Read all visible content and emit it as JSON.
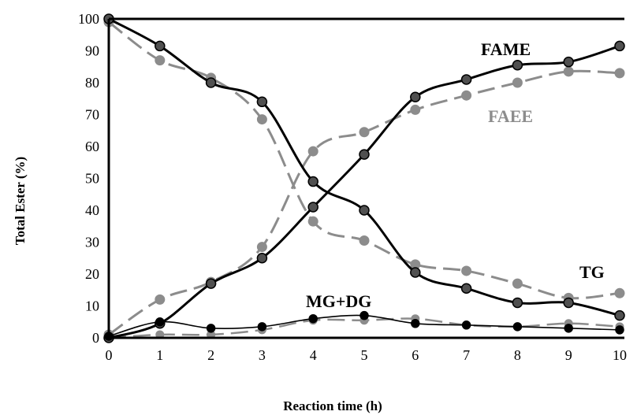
{
  "chart_data": {
    "type": "line",
    "xlabel": "Reaction time (h)",
    "ylabel": "Total Ester (%)",
    "xlim": [
      0,
      10
    ],
    "ylim": [
      0,
      100
    ],
    "xticks": [
      "0",
      "1",
      "2",
      "3",
      "4",
      "5",
      "6",
      "7",
      "8",
      "9",
      "10"
    ],
    "yticks": [
      "0",
      "10",
      "20",
      "30",
      "40",
      "50",
      "60",
      "70",
      "80",
      "90",
      "100"
    ],
    "grid": false,
    "x": [
      0,
      1,
      2,
      3,
      4,
      5,
      6,
      7,
      8,
      9,
      10
    ],
    "series": [
      {
        "name": "FAME",
        "color": "#000000",
        "dashed": false,
        "marker_fill": "#505050",
        "values": [
          0,
          4.5,
          17,
          25,
          41,
          57.5,
          75.5,
          81,
          85.5,
          86.5,
          91.5
        ]
      },
      {
        "name": "FAEE",
        "color": "#8c8c8c",
        "dashed": true,
        "marker_fill": "#8c8c8c",
        "values": [
          1,
          12,
          17.5,
          28.5,
          58.5,
          64.5,
          71.5,
          76,
          80,
          83.5,
          83
        ]
      },
      {
        "name": "TG",
        "color": "#000000",
        "dashed": false,
        "marker_fill": "#505050",
        "values": [
          100,
          91.5,
          80,
          74,
          49,
          40,
          20.5,
          15.5,
          11,
          11,
          7
        ]
      },
      {
        "name": "TG",
        "color": "#8c8c8c",
        "dashed": true,
        "marker_fill": "#8c8c8c",
        "values": [
          99,
          87,
          81.5,
          68.5,
          36.5,
          30.5,
          23,
          21,
          17,
          12.5,
          14
        ]
      },
      {
        "name": "MG+DG",
        "color": "#000000",
        "dashed": false,
        "thin": true,
        "marker_fill": "#000000",
        "values": [
          0.5,
          5,
          3,
          3.5,
          6,
          7,
          4.5,
          4,
          3.5,
          3,
          2.5
        ]
      },
      {
        "name": "MG+DG",
        "color": "#8c8c8c",
        "dashed": true,
        "thin": true,
        "marker_fill": "#8c8c8c",
        "values": [
          0,
          1,
          1,
          2.5,
          5.5,
          5.5,
          6,
          4,
          3.5,
          4.5,
          3.5
        ]
      }
    ],
    "annotations": [
      {
        "text": "FAME",
        "color": "#000000"
      },
      {
        "text": "FAEE",
        "color": "#8c8c8c"
      },
      {
        "text": "TG",
        "color": "#000000"
      },
      {
        "text": "MG+DG",
        "color": "#000000"
      }
    ]
  }
}
